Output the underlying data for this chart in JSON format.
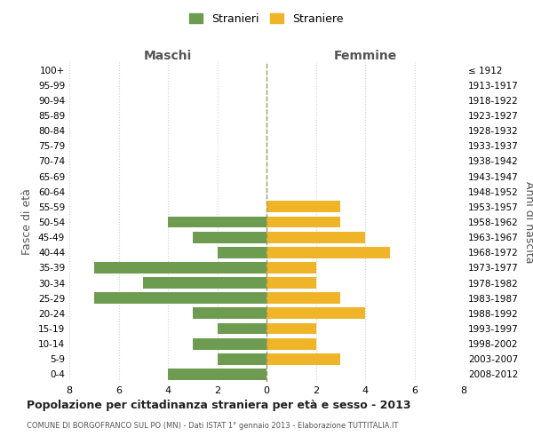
{
  "age_groups": [
    "100+",
    "95-99",
    "90-94",
    "85-89",
    "80-84",
    "75-79",
    "70-74",
    "65-69",
    "60-64",
    "55-59",
    "50-54",
    "45-49",
    "40-44",
    "35-39",
    "30-34",
    "25-29",
    "20-24",
    "15-19",
    "10-14",
    "5-9",
    "0-4"
  ],
  "birth_years": [
    "≤ 1912",
    "1913-1917",
    "1918-1922",
    "1923-1927",
    "1928-1932",
    "1933-1937",
    "1938-1942",
    "1943-1947",
    "1948-1952",
    "1953-1957",
    "1958-1962",
    "1963-1967",
    "1968-1972",
    "1973-1977",
    "1978-1982",
    "1983-1987",
    "1988-1992",
    "1993-1997",
    "1998-2002",
    "2003-2007",
    "2008-2012"
  ],
  "maschi": [
    0,
    0,
    0,
    0,
    0,
    0,
    0,
    0,
    0,
    0,
    4,
    3,
    2,
    7,
    5,
    7,
    3,
    2,
    3,
    2,
    4
  ],
  "femmine": [
    0,
    0,
    0,
    0,
    0,
    0,
    0,
    0,
    0,
    3,
    3,
    4,
    5,
    2,
    2,
    3,
    4,
    2,
    2,
    3,
    0
  ],
  "maschi_color": "#6d9b50",
  "femmine_color": "#f0b429",
  "title": "Popolazione per cittadinanza straniera per età e sesso - 2013",
  "subtitle": "COMUNE DI BORGOFRANCO SUL PO (MN) - Dati ISTAT 1° gennaio 2013 - Elaborazione TUTTITALIA.IT",
  "xlabel_left": "Maschi",
  "xlabel_right": "Femmine",
  "ylabel_left": "Fasce di età",
  "ylabel_right": "Anni di nascita",
  "legend_maschi": "Stranieri",
  "legend_femmine": "Straniere",
  "xlim": 8,
  "background_color": "#ffffff",
  "grid_color": "#d0d0d0"
}
